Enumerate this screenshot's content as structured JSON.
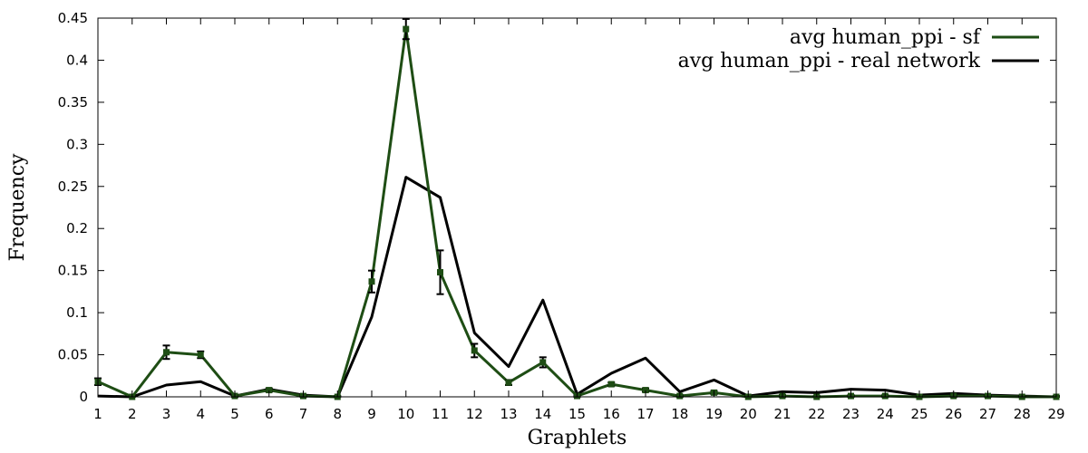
{
  "chart_data": {
    "type": "line",
    "title": "",
    "xlabel": "Graphlets",
    "ylabel": "Frequency",
    "xlim": [
      1,
      29
    ],
    "ylim": [
      0,
      0.45
    ],
    "x_ticks": [
      1,
      2,
      3,
      4,
      5,
      6,
      7,
      8,
      9,
      10,
      11,
      12,
      13,
      14,
      15,
      16,
      17,
      18,
      19,
      20,
      21,
      22,
      23,
      24,
      25,
      26,
      27,
      28,
      29
    ],
    "y_ticks": [
      "0",
      "0.05",
      "0.1",
      "0.15",
      "0.2",
      "0.25",
      "0.3",
      "0.35",
      "0.4",
      "0.45"
    ],
    "grid": false,
    "legend_position": "top-right",
    "series": [
      {
        "name": "avg human_ppi - sf",
        "color": "#1e4d14",
        "x": [
          1,
          2,
          3,
          4,
          5,
          6,
          7,
          8,
          9,
          10,
          11,
          12,
          13,
          14,
          15,
          16,
          17,
          18,
          19,
          20,
          21,
          22,
          23,
          24,
          25,
          26,
          27,
          28,
          29
        ],
        "y": [
          0.018,
          0.0,
          0.053,
          0.05,
          0.001,
          0.008,
          0.001,
          0.0,
          0.137,
          0.437,
          0.148,
          0.055,
          0.017,
          0.041,
          0.001,
          0.015,
          0.008,
          0.001,
          0.005,
          0.0,
          0.001,
          0.0,
          0.001,
          0.001,
          0.0,
          0.001,
          0.001,
          0.0,
          0.0
        ],
        "error": [
          0.004,
          0.001,
          0.008,
          0.004,
          0.001,
          0.002,
          0.001,
          0.001,
          0.013,
          0.012,
          0.026,
          0.008,
          0.003,
          0.006,
          0.001,
          0.002,
          0.002,
          0.001,
          0.002,
          0.001,
          0.001,
          0.001,
          0.001,
          0.001,
          0.001,
          0.001,
          0.001,
          0.001,
          0.001
        ]
      },
      {
        "name": "avg human_ppi - real network",
        "color": "#000000",
        "x": [
          1,
          2,
          3,
          4,
          5,
          6,
          7,
          8,
          9,
          10,
          11,
          12,
          13,
          14,
          15,
          16,
          17,
          18,
          19,
          20,
          21,
          22,
          23,
          24,
          25,
          26,
          27,
          28,
          29
        ],
        "y": [
          0.001,
          0.0,
          0.014,
          0.018,
          0.001,
          0.009,
          0.002,
          0.0,
          0.095,
          0.261,
          0.237,
          0.076,
          0.036,
          0.115,
          0.003,
          0.028,
          0.046,
          0.006,
          0.02,
          0.001,
          0.006,
          0.005,
          0.009,
          0.008,
          0.002,
          0.004,
          0.002,
          0.001,
          0.0
        ]
      }
    ]
  }
}
